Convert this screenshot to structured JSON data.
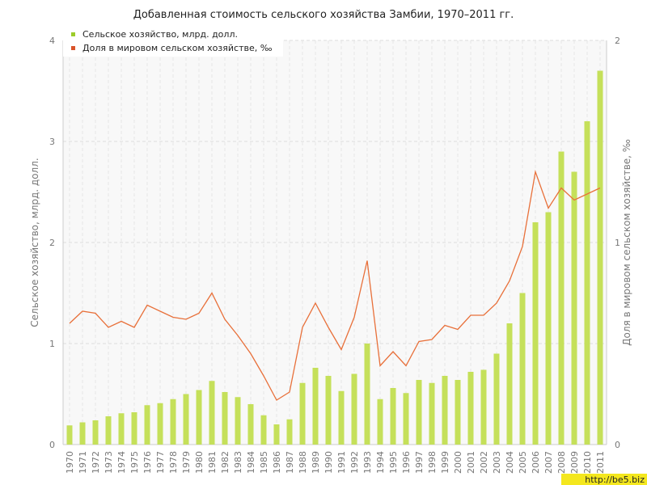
{
  "chart_data": {
    "type": "bar+line",
    "title": "Добавленная стоимость сельского хозяйства Замбии, 1970–2011 гг.",
    "ylabel_left": "Сельское хозяйство, млрд. долл.",
    "ylabel_right": "Доля в мировом сельском хозяйстве, ‰",
    "ylim_left": [
      0,
      4
    ],
    "ylim_right": [
      0,
      2
    ],
    "yticks_left": [
      "0",
      "1",
      "2",
      "3",
      "4"
    ],
    "yticks_right": [
      "0",
      "1",
      "2"
    ],
    "grid": true,
    "legend_position": "top-left",
    "categories": [
      "1970",
      "1971",
      "1972",
      "1973",
      "1974",
      "1975",
      "1976",
      "1977",
      "1978",
      "1979",
      "1980",
      "1981",
      "1982",
      "1983",
      "1984",
      "1985",
      "1986",
      "1987",
      "1988",
      "1989",
      "1990",
      "1991",
      "1992",
      "1993",
      "1994",
      "1995",
      "1996",
      "1997",
      "1998",
      "1999",
      "2000",
      "2001",
      "2002",
      "2003",
      "2004",
      "2005",
      "2006",
      "2007",
      "2008",
      "2009",
      "2010",
      "2011"
    ],
    "series": [
      {
        "name": "Сельское хозяйство, млрд. долл.",
        "type": "bar",
        "axis": "left",
        "color": "#c5e05a",
        "values": [
          0.19,
          0.22,
          0.24,
          0.28,
          0.31,
          0.32,
          0.39,
          0.41,
          0.45,
          0.5,
          0.54,
          0.63,
          0.52,
          0.47,
          0.4,
          0.29,
          0.2,
          0.25,
          0.61,
          0.76,
          0.68,
          0.53,
          0.7,
          1.0,
          0.45,
          0.56,
          0.51,
          0.64,
          0.61,
          0.68,
          0.64,
          0.72,
          0.74,
          0.9,
          1.2,
          1.5,
          2.2,
          2.3,
          2.9,
          2.7,
          3.2,
          3.7
        ]
      },
      {
        "name": "Доля в мировом сельском хозяйстве, ‰",
        "type": "line",
        "axis": "right",
        "color": "#e8703a",
        "values": [
          0.6,
          0.66,
          0.65,
          0.58,
          0.61,
          0.58,
          0.69,
          0.66,
          0.63,
          0.62,
          0.65,
          0.75,
          0.62,
          0.54,
          0.45,
          0.34,
          0.22,
          0.26,
          0.58,
          0.7,
          0.58,
          0.47,
          0.63,
          0.91,
          0.39,
          0.46,
          0.39,
          0.51,
          0.52,
          0.59,
          0.57,
          0.64,
          0.64,
          0.7,
          0.81,
          0.98,
          1.35,
          1.17,
          1.27,
          1.21,
          1.24,
          1.27
        ]
      }
    ]
  },
  "watermark": "http://be5.biz"
}
